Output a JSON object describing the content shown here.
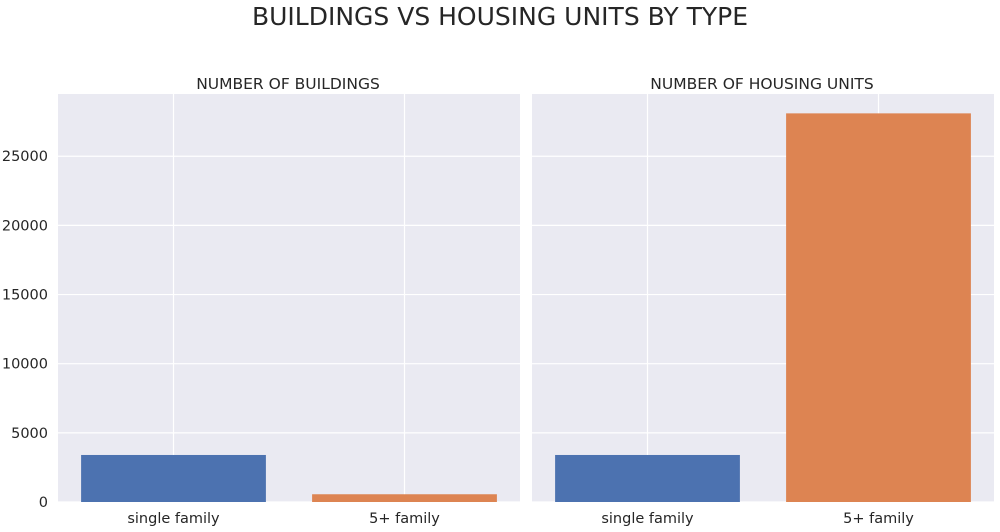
{
  "figure": {
    "title": "BUILDINGS VS HOUSING UNITS BY TYPE"
  },
  "style": {
    "background": "#ffffff",
    "panel_background": "#eaeaf2",
    "grid_color": "#ffffff",
    "text_color": "#262626"
  },
  "chart_data": [
    {
      "type": "bar",
      "title": "NUMBER OF BUILDINGS",
      "categories": [
        "single family",
        "5+ family"
      ],
      "values": [
        3400,
        560
      ],
      "colors": [
        "#4c72b0",
        "#dd8452"
      ],
      "ylim": [
        0,
        29500
      ],
      "yticks": [
        0,
        5000,
        10000,
        15000,
        20000,
        25000
      ],
      "xlabel": "",
      "ylabel": "",
      "grid": true,
      "legend": "none"
    },
    {
      "type": "bar",
      "title": "NUMBER OF HOUSING UNITS",
      "categories": [
        "single family",
        "5+ family"
      ],
      "values": [
        3400,
        28100
      ],
      "colors": [
        "#4c72b0",
        "#dd8452"
      ],
      "ylim": [
        0,
        29500
      ],
      "yticks": [
        0,
        5000,
        10000,
        15000,
        20000,
        25000
      ],
      "xlabel": "",
      "ylabel": "",
      "grid": true,
      "legend": "none",
      "sharey": true
    }
  ]
}
